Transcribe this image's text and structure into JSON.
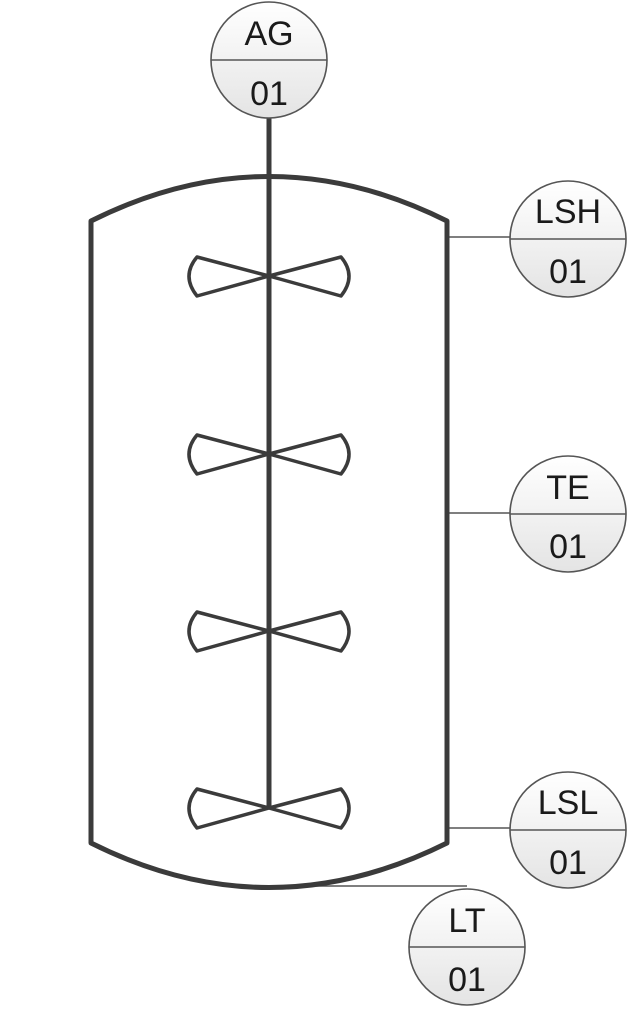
{
  "instruments": [
    {
      "id": "agitator",
      "function": "AG",
      "loop": "01"
    },
    {
      "id": "level-switch-high",
      "function": "LSH",
      "loop": "01"
    },
    {
      "id": "temperature-element",
      "function": "TE",
      "loop": "01"
    },
    {
      "id": "level-switch-low",
      "function": "LSL",
      "loop": "01"
    },
    {
      "id": "level-transmitter",
      "function": "LT",
      "loop": "01"
    }
  ],
  "colors": {
    "line": "#3b3b3b",
    "bubble_fill_top": "#ffffff",
    "bubble_fill_bottom": "#e6e6e6"
  }
}
